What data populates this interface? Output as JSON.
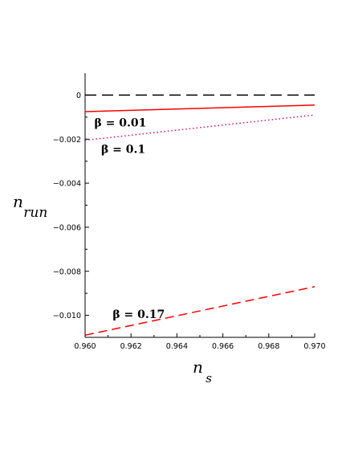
{
  "chart_data": {
    "type": "line",
    "xlabel": {
      "main": "n",
      "sub": "s"
    },
    "ylabel": {
      "main": "n",
      "sub": "run"
    },
    "xlim": [
      0.96,
      0.97
    ],
    "ylim": [
      -0.011,
      0.001
    ],
    "xticks": [
      0.96,
      0.962,
      0.964,
      0.966,
      0.968,
      0.97
    ],
    "xtick_labels": [
      "0.960",
      "0.962",
      "0.964",
      "0.966",
      "0.968",
      "0.970"
    ],
    "yticks": [
      0,
      -0.002,
      -0.004,
      -0.006,
      -0.008,
      -0.01
    ],
    "ytick_labels": [
      "0",
      "−0.002",
      "−0.004",
      "−0.006",
      "−0.008",
      "−0.010"
    ],
    "grid": false,
    "series": [
      {
        "x": [
          0.96,
          0.97
        ],
        "y": [
          0,
          0
        ],
        "color": "#000000",
        "style": "long-dash"
      },
      {
        "x": [
          0.96,
          0.97
        ],
        "y": [
          -0.00075,
          -0.00045
        ],
        "color": "#ff0000",
        "style": "solid"
      },
      {
        "x": [
          0.96,
          0.97
        ],
        "y": [
          -0.00205,
          -0.0009
        ],
        "color": "#cc0066",
        "style": "dotted"
      },
      {
        "x": [
          0.96,
          0.97
        ],
        "y": [
          -0.0109,
          -0.0087
        ],
        "color": "#ff0000",
        "style": "dashed"
      }
    ],
    "annotations": [
      {
        "text": "β = 0.01",
        "x": 0.9604,
        "y": -0.00125
      },
      {
        "text": "β = 0.1",
        "x": 0.9607,
        "y": -0.00245
      },
      {
        "text": "β = 0.17",
        "x": 0.9612,
        "y": -0.00995
      }
    ]
  }
}
